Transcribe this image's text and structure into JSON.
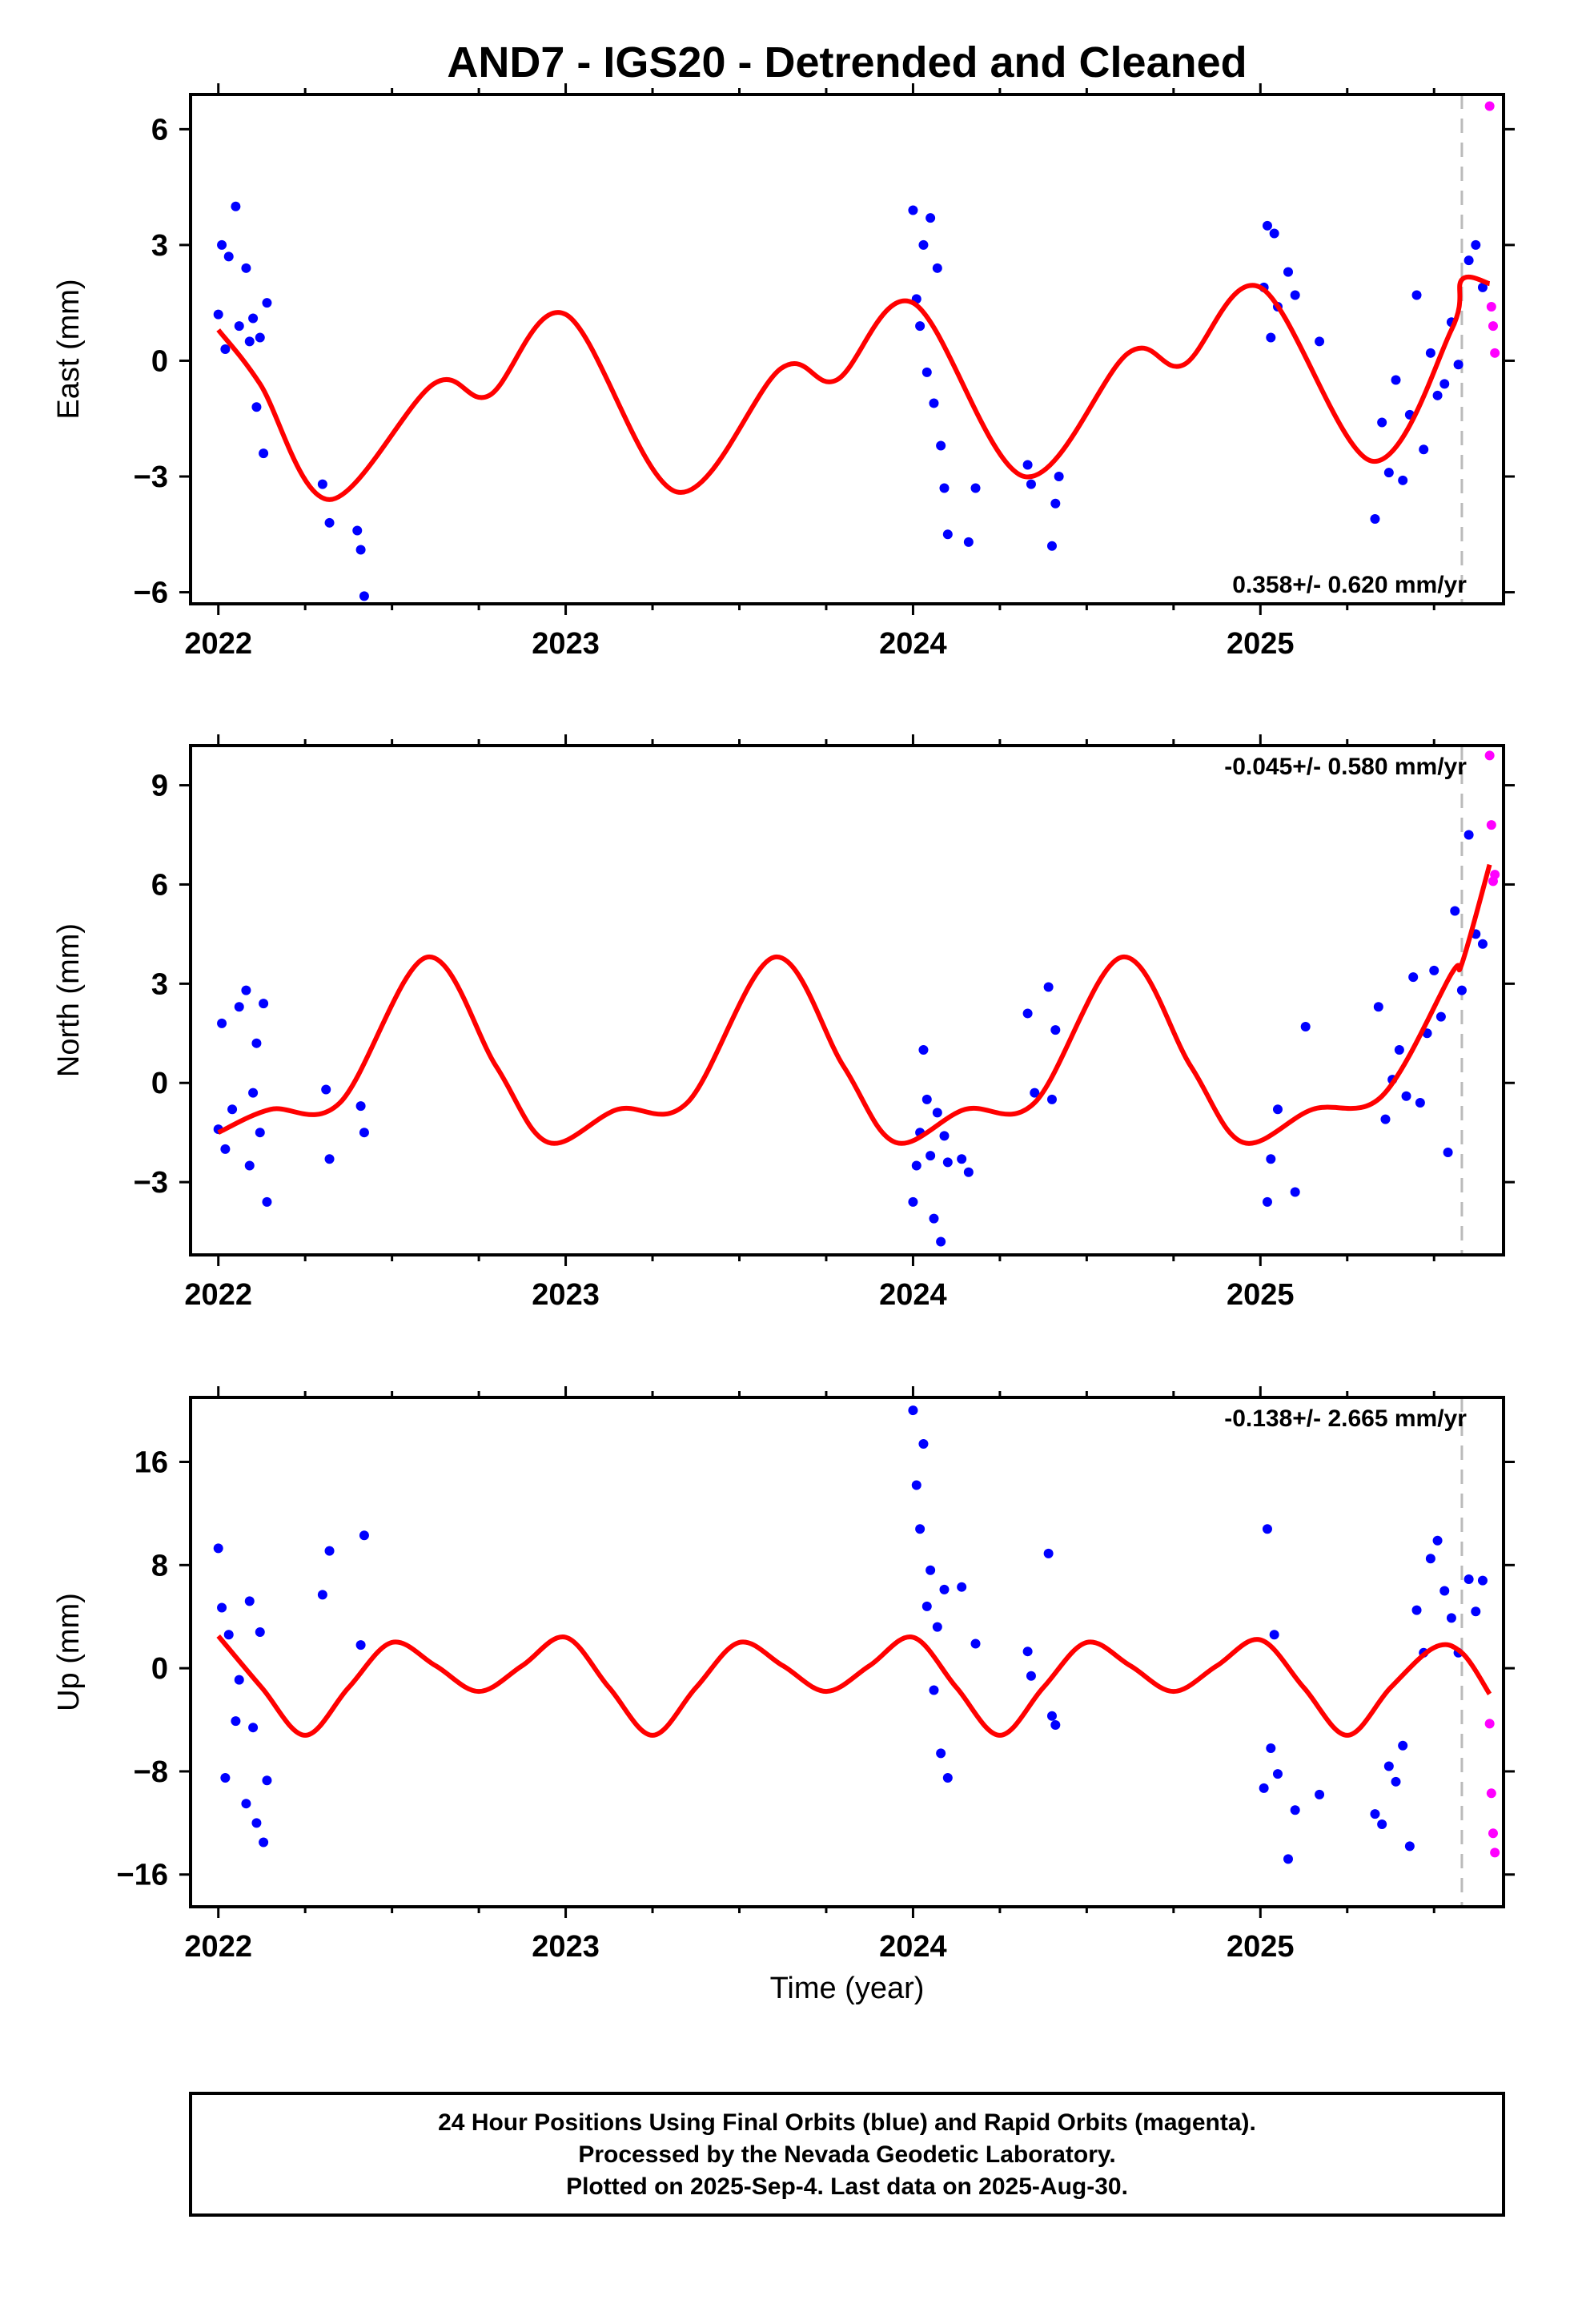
{
  "title": "AND7 - IGS20 - Detrended and Cleaned",
  "xlabel": "Time (year)",
  "caption": {
    "line1": "24 Hour Positions Using Final Orbits (blue) and Rapid Orbits (magenta).",
    "line2": "Processed by the Nevada Geodetic Laboratory.",
    "line3": "Plotted on 2025-Sep-4. Last data on 2025-Aug-30."
  },
  "colors": {
    "final": "#0000ff",
    "rapid": "#ff00ff",
    "model": "#ff0000",
    "marker": "#bbbbbb"
  },
  "chart_data": [
    {
      "type": "scatter",
      "component": "East",
      "ylabel": "East (mm)",
      "rate_text": "0.358+/- 0.620 mm/yr",
      "xlim": [
        2021.92,
        2025.7
      ],
      "ylim": [
        -6.3,
        6.9
      ],
      "yticks": [
        -6,
        -3,
        0,
        3,
        6
      ],
      "yticklabels": [
        "−6",
        "−3",
        "0",
        "3",
        "6"
      ],
      "xticks": [
        2022,
        2023,
        2024,
        2025
      ],
      "xticklabels": [
        "2022",
        "2023",
        "2024",
        "2025"
      ],
      "last_final_epoch": 2025.58,
      "model": {
        "amp": 1.3,
        "freq": 2.0,
        "phase": 0.0,
        "base": 0.6,
        "base_rise": 1.5
      },
      "model_curve": {
        "x": [
          2022.0,
          2022.12,
          2022.32,
          2022.62,
          2022.78,
          2023.0,
          2023.32,
          2023.62,
          2023.78,
          2024.0,
          2024.32,
          2024.62,
          2024.78,
          2025.0,
          2025.32,
          2025.55,
          2025.58,
          2025.66
        ],
        "y": [
          0.8,
          -0.6,
          -3.6,
          -0.6,
          -0.9,
          1.2,
          -3.4,
          -0.2,
          -0.5,
          1.5,
          -3.0,
          0.2,
          -0.1,
          1.9,
          -2.6,
          0.8,
          2.1,
          2.0
        ]
      },
      "final_points": {
        "x": [
          2022.0,
          2022.01,
          2022.02,
          2022.03,
          2022.05,
          2022.06,
          2022.08,
          2022.09,
          2022.1,
          2022.11,
          2022.12,
          2022.13,
          2022.14,
          2022.3,
          2022.32,
          2022.4,
          2022.41,
          2022.42,
          2024.0,
          2024.01,
          2024.02,
          2024.03,
          2024.04,
          2024.05,
          2024.06,
          2024.07,
          2024.08,
          2024.09,
          2024.1,
          2024.16,
          2024.18,
          2024.33,
          2024.34,
          2024.4,
          2024.41,
          2024.42,
          2025.01,
          2025.02,
          2025.03,
          2025.04,
          2025.05,
          2025.08,
          2025.1,
          2025.17,
          2025.33,
          2025.35,
          2025.37,
          2025.39,
          2025.41,
          2025.43,
          2025.45,
          2025.47,
          2025.49,
          2025.51,
          2025.53,
          2025.55,
          2025.57,
          2025.6,
          2025.62,
          2025.64
        ],
        "y": [
          1.2,
          3.0,
          0.3,
          2.7,
          4.0,
          0.9,
          2.4,
          0.5,
          1.1,
          -1.2,
          0.6,
          -2.4,
          1.5,
          -3.2,
          -4.2,
          -4.4,
          -4.9,
          -6.1,
          3.9,
          1.6,
          0.9,
          3.0,
          -0.3,
          3.7,
          -1.1,
          2.4,
          -2.2,
          -3.3,
          -4.5,
          -4.7,
          -3.3,
          -2.7,
          -3.2,
          -4.8,
          -3.7,
          -3.0,
          1.9,
          3.5,
          0.6,
          3.3,
          1.4,
          2.3,
          1.7,
          0.5,
          -4.1,
          -1.6,
          -2.9,
          -0.5,
          -3.1,
          -1.4,
          1.7,
          -2.3,
          0.2,
          -0.9,
          -0.6,
          1.0,
          -0.1,
          2.6,
          3.0,
          1.9
        ]
      },
      "rapid_points": {
        "x": [
          2025.66,
          2025.665,
          2025.67,
          2025.675
        ],
        "y": [
          6.6,
          1.4,
          0.9,
          0.2
        ]
      }
    },
    {
      "type": "scatter",
      "component": "North",
      "ylabel": "North (mm)",
      "rate_text": "-0.045+/- 0.580 mm/yr",
      "xlim": [
        2021.92,
        2025.7
      ],
      "ylim": [
        -5.2,
        10.2
      ],
      "yticks": [
        -3,
        0,
        3,
        6,
        9
      ],
      "yticklabels": [
        "−3",
        "0",
        "3",
        "6",
        "9"
      ],
      "xticks": [
        2022,
        2023,
        2024,
        2025
      ],
      "xticklabels": [
        "2022",
        "2023",
        "2024",
        "2025"
      ],
      "last_final_epoch": 2025.58,
      "model_curve": {
        "x": [
          2022.0,
          2022.15,
          2022.35,
          2022.6,
          2022.8,
          2022.95,
          2023.15,
          2023.35,
          2023.6,
          2023.8,
          2023.95,
          2024.15,
          2024.35,
          2024.6,
          2024.8,
          2024.95,
          2025.15,
          2025.35,
          2025.55,
          2025.58,
          2025.66
        ],
        "y": [
          -1.5,
          -0.8,
          -0.6,
          3.8,
          0.5,
          -1.8,
          -0.8,
          -0.6,
          3.8,
          0.5,
          -1.8,
          -0.8,
          -0.6,
          3.8,
          0.5,
          -1.8,
          -0.8,
          -0.4,
          3.3,
          3.6,
          6.6
        ]
      },
      "final_points": {
        "x": [
          2022.0,
          2022.01,
          2022.02,
          2022.04,
          2022.06,
          2022.08,
          2022.09,
          2022.1,
          2022.11,
          2022.12,
          2022.13,
          2022.14,
          2022.31,
          2022.32,
          2022.41,
          2022.42,
          2024.0,
          2024.01,
          2024.02,
          2024.03,
          2024.04,
          2024.05,
          2024.06,
          2024.07,
          2024.08,
          2024.09,
          2024.1,
          2024.14,
          2024.16,
          2024.33,
          2024.35,
          2024.39,
          2024.4,
          2024.41,
          2025.02,
          2025.03,
          2025.05,
          2025.1,
          2025.13,
          2025.34,
          2025.36,
          2025.38,
          2025.4,
          2025.42,
          2025.44,
          2025.46,
          2025.48,
          2025.5,
          2025.52,
          2025.54,
          2025.56,
          2025.58,
          2025.6,
          2025.62,
          2025.64
        ],
        "y": [
          -1.4,
          1.8,
          -2.0,
          -0.8,
          2.3,
          2.8,
          -2.5,
          -0.3,
          1.2,
          -1.5,
          2.4,
          -3.6,
          -0.2,
          -2.3,
          -0.7,
          -1.5,
          -3.6,
          -2.5,
          -1.5,
          1.0,
          -0.5,
          -2.2,
          -4.1,
          -0.9,
          -4.8,
          -1.6,
          -2.4,
          -2.3,
          -2.7,
          2.1,
          -0.3,
          2.9,
          -0.5,
          1.6,
          -3.6,
          -2.3,
          -0.8,
          -3.3,
          1.7,
          2.3,
          -1.1,
          0.1,
          1.0,
          -0.4,
          3.2,
          -0.6,
          1.5,
          3.4,
          2.0,
          -2.1,
          5.2,
          2.8,
          7.5,
          4.5,
          4.2
        ]
      },
      "rapid_points": {
        "x": [
          2025.66,
          2025.665,
          2025.67,
          2025.675
        ],
        "y": [
          9.9,
          7.8,
          6.1,
          6.3
        ]
      }
    },
    {
      "type": "scatter",
      "component": "Up",
      "ylabel": "Up (mm)",
      "rate_text": "-0.138+/- 2.665 mm/yr",
      "xlim": [
        2021.92,
        2025.7
      ],
      "ylim": [
        -18.5,
        21.0
      ],
      "yticks": [
        -16,
        -8,
        0,
        8,
        16
      ],
      "yticklabels": [
        "−16",
        "−8",
        "0",
        "8",
        "16"
      ],
      "xticks": [
        2022,
        2023,
        2024,
        2025
      ],
      "xticklabels": [
        "2022",
        "2023",
        "2024",
        "2025"
      ],
      "last_final_epoch": 2025.58,
      "model_curve": {
        "x": [
          2022.0,
          2022.125,
          2022.25,
          2022.375,
          2022.5,
          2022.625,
          2022.75,
          2022.875,
          2023.0,
          2023.125,
          2023.25,
          2023.375,
          2023.5,
          2023.625,
          2023.75,
          2023.875,
          2024.0,
          2024.125,
          2024.25,
          2024.375,
          2024.5,
          2024.625,
          2024.75,
          2024.875,
          2025.0,
          2025.125,
          2025.25,
          2025.375,
          2025.5,
          2025.58,
          2025.66
        ],
        "y": [
          2.5,
          -1.5,
          -5.2,
          -1.5,
          2.0,
          0.2,
          -1.8,
          0.2,
          2.4,
          -1.5,
          -5.2,
          -1.5,
          2.0,
          0.2,
          -1.8,
          0.2,
          2.4,
          -1.5,
          -5.2,
          -1.5,
          2.0,
          0.2,
          -1.8,
          0.2,
          2.2,
          -1.5,
          -5.2,
          -1.5,
          1.6,
          1.2,
          -2.0
        ]
      },
      "final_points": {
        "x": [
          2022.0,
          2022.01,
          2022.02,
          2022.03,
          2022.05,
          2022.06,
          2022.08,
          2022.09,
          2022.1,
          2022.11,
          2022.12,
          2022.13,
          2022.14,
          2022.3,
          2022.32,
          2022.41,
          2022.42,
          2024.0,
          2024.01,
          2024.02,
          2024.03,
          2024.04,
          2024.05,
          2024.06,
          2024.07,
          2024.08,
          2024.09,
          2024.1,
          2024.14,
          2024.18,
          2024.33,
          2024.34,
          2024.39,
          2024.4,
          2024.41,
          2025.01,
          2025.02,
          2025.03,
          2025.04,
          2025.05,
          2025.08,
          2025.1,
          2025.17,
          2025.33,
          2025.35,
          2025.37,
          2025.39,
          2025.41,
          2025.43,
          2025.45,
          2025.47,
          2025.49,
          2025.51,
          2025.53,
          2025.55,
          2025.57,
          2025.6,
          2025.62,
          2025.64
        ],
        "y": [
          9.3,
          4.7,
          -8.5,
          2.6,
          -4.1,
          -0.9,
          -10.5,
          5.2,
          -4.6,
          -12.0,
          2.8,
          -13.5,
          -8.7,
          5.7,
          9.1,
          1.8,
          10.3,
          20.0,
          14.2,
          10.8,
          17.4,
          4.8,
          7.6,
          -1.7,
          3.2,
          -6.6,
          6.1,
          -8.5,
          6.3,
          1.9,
          1.3,
          -0.6,
          8.9,
          -3.7,
          -4.4,
          -9.3,
          10.8,
          -6.2,
          2.6,
          -8.2,
          -14.8,
          -11.0,
          -9.8,
          -11.3,
          -12.1,
          -7.6,
          -8.8,
          -6.0,
          -13.8,
          4.5,
          1.2,
          8.5,
          9.9,
          6.0,
          3.9,
          1.2,
          6.9,
          4.4,
          6.8
        ]
      },
      "rapid_points": {
        "x": [
          2025.66,
          2025.665,
          2025.67,
          2025.675
        ],
        "y": [
          -4.3,
          -9.7,
          -12.8,
          -14.3
        ]
      }
    }
  ]
}
